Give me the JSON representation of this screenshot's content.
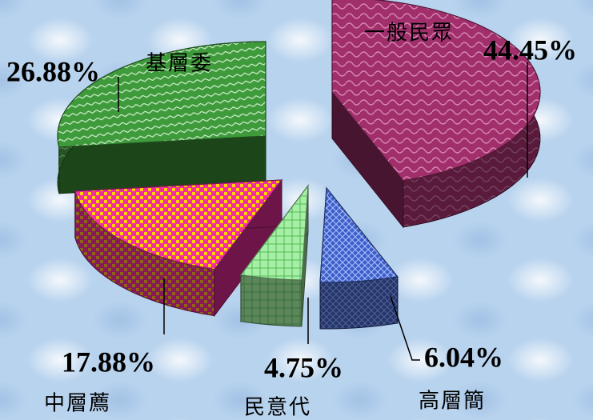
{
  "chart_data": {
    "type": "pie",
    "categories": [
      "一般民眾",
      "高層簡",
      "民意代",
      "中層薦",
      "基層委"
    ],
    "values": [
      44.45,
      6.04,
      4.75,
      17.88,
      26.88
    ],
    "labels": [
      "44.45%",
      "6.04%",
      "4.75%",
      "17.88%",
      "26.88%"
    ],
    "colors": [
      "#a12f6c",
      "#3f5fc8",
      "#a6efa6",
      "#f22ea0",
      "#3e9a3a"
    ]
  }
}
